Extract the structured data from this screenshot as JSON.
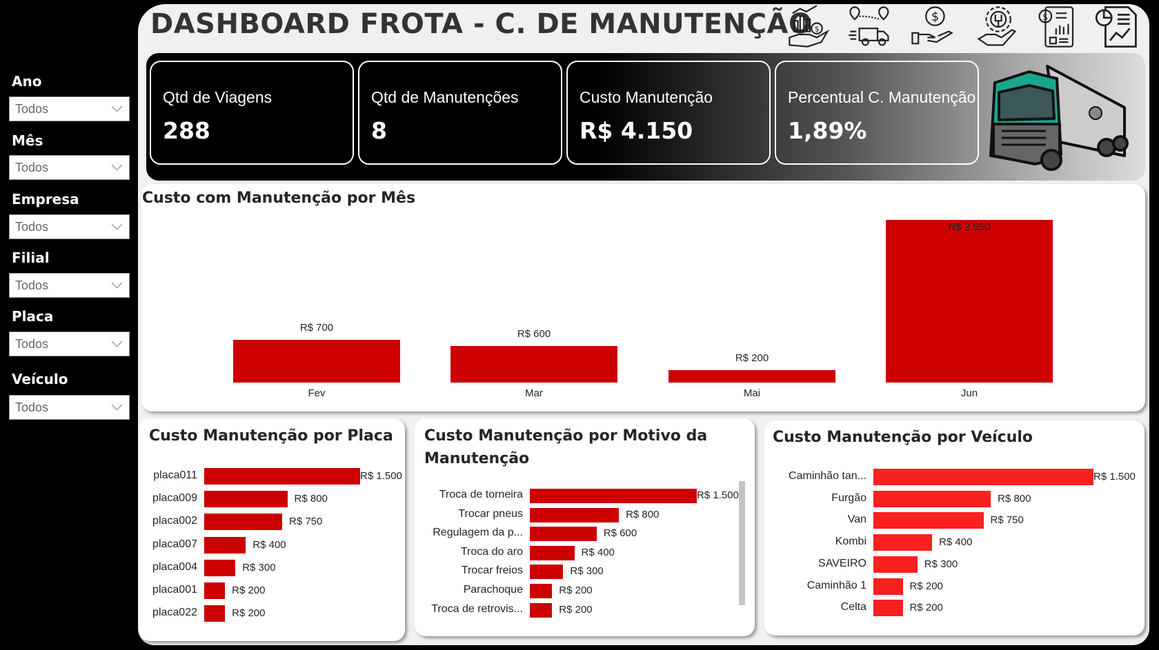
{
  "header": {
    "title": "DASHBOARD FROTA - C. DE MANUTENÇÃO",
    "icons": [
      "hand-money-growth-icon",
      "route-truck-icon",
      "hand-dollar-icon",
      "gear-wrench-hand-icon",
      "financial-report-icon",
      "analytics-report-icon",
      "truck-illustration"
    ]
  },
  "filters": [
    {
      "label": "Ano",
      "value": "Todos"
    },
    {
      "label": "Mês",
      "value": "Todos"
    },
    {
      "label": "Empresa",
      "value": "Todos"
    },
    {
      "label": "Filial",
      "value": "Todos"
    },
    {
      "label": "Placa",
      "value": "Todos"
    },
    {
      "label": "Veículo",
      "value": "Todos"
    }
  ],
  "kpis": [
    {
      "label": "Qtd de Viagens",
      "value": "288"
    },
    {
      "label": "Qtd de Manutenções",
      "value": "8"
    },
    {
      "label": "Custo Manutenção",
      "value": "R$ 4.150"
    },
    {
      "label": "Percentual C. Manutenção",
      "value": "1,89%"
    }
  ],
  "colors": {
    "bar": "#CC0000",
    "bar_vehicle": "#F92020"
  },
  "chart_data": [
    {
      "type": "bar",
      "title": "Custo com Manutenção por Mês",
      "categories": [
        "Fev",
        "Mar",
        "Mai",
        "Jun"
      ],
      "values": [
        700,
        600,
        200,
        2650
      ],
      "labels": [
        "R$ 700",
        "R$ 600",
        "R$ 200",
        "R$ 2.650"
      ]
    },
    {
      "type": "bar",
      "orientation": "horizontal",
      "title": "Custo Manutenção por Placa",
      "categories": [
        "placa011",
        "placa009",
        "placa002",
        "placa007",
        "placa004",
        "placa001",
        "placa022"
      ],
      "values": [
        1500,
        800,
        750,
        400,
        300,
        200,
        200
      ],
      "labels": [
        "R$ 1.500",
        "R$ 800",
        "R$ 750",
        "R$ 400",
        "R$ 300",
        "R$ 200",
        "R$ 200"
      ]
    },
    {
      "type": "bar",
      "orientation": "horizontal",
      "title": "Custo Manutenção por Motivo da Manutenção",
      "categories": [
        "Troca de torneira",
        "Trocar pneus",
        "Regulagem da p...",
        "Troca do aro",
        "Trocar freios",
        "Parachoque",
        "Troca de retrovis..."
      ],
      "values": [
        1500,
        800,
        600,
        400,
        300,
        200,
        200
      ],
      "labels": [
        "R$ 1.500",
        "R$ 800",
        "R$ 600",
        "R$ 400",
        "R$ 300",
        "R$ 200",
        "R$ 200"
      ]
    },
    {
      "type": "bar",
      "orientation": "horizontal",
      "title": "Custo Manutenção por Veículo",
      "categories": [
        "Caminhão tan...",
        "Furgão",
        "Van",
        "Kombi",
        "SAVEIRO",
        "Caminhão 1",
        "Celta"
      ],
      "values": [
        1500,
        800,
        750,
        400,
        300,
        200,
        200
      ],
      "labels": [
        "R$ 1.500",
        "R$ 800",
        "R$ 750",
        "R$ 400",
        "R$ 300",
        "R$ 200",
        "R$ 200"
      ]
    }
  ]
}
